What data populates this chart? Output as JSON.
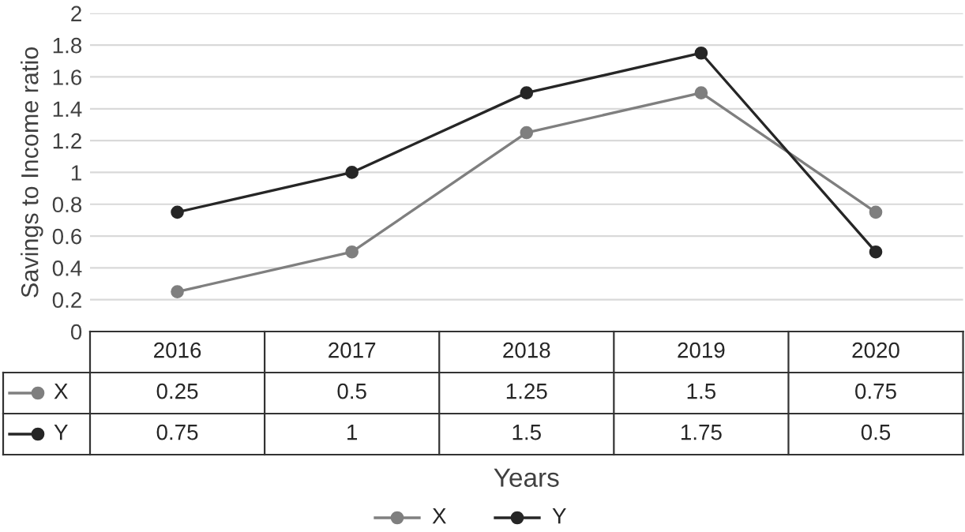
{
  "chart_data": {
    "type": "line",
    "xlabel": "Years",
    "ylabel": "Savings to Income ratio",
    "categories": [
      "2016",
      "2017",
      "2018",
      "2019",
      "2020"
    ],
    "series": [
      {
        "name": "X",
        "color": "#7f7f7f",
        "values": [
          0.25,
          0.5,
          1.25,
          1.5,
          0.75
        ]
      },
      {
        "name": "Y",
        "color": "#262626",
        "values": [
          0.75,
          1,
          1.5,
          1.75,
          0.5
        ]
      }
    ],
    "ylim": [
      0,
      2
    ],
    "yticks": [
      0,
      0.2,
      0.4,
      0.6,
      0.8,
      1,
      1.2,
      1.4,
      1.6,
      1.8,
      2
    ],
    "grid": "y",
    "legend": "bottom",
    "marker": "circle",
    "line_style": "solid",
    "data_labels": true
  }
}
